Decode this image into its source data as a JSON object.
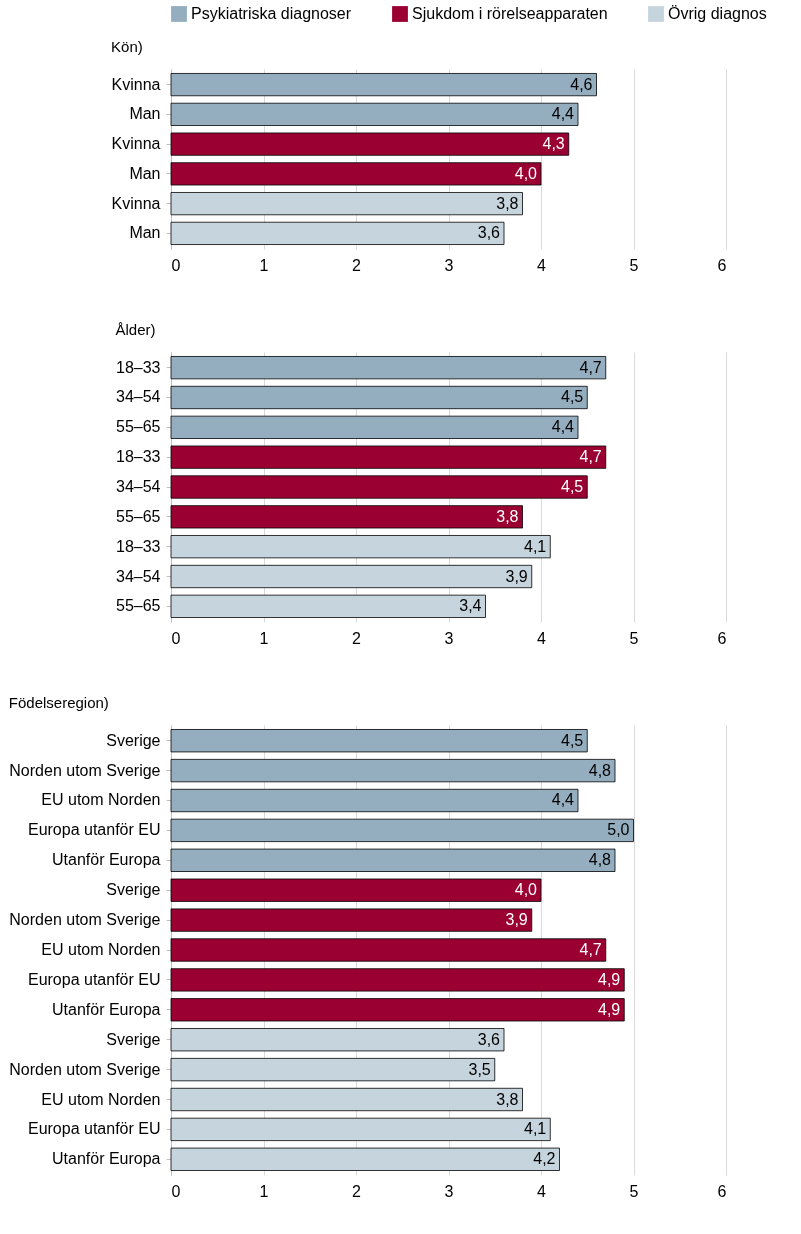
{
  "chart_data": [
    {
      "type": "bar",
      "orientation": "horizontal",
      "title": "Kön)",
      "categories": [
        "Kvinna",
        "Man",
        "Kvinna",
        "Man",
        "Kvinna",
        "Man"
      ],
      "series": [
        {
          "name": "Psykiatriska diagnoser",
          "color": "#94aebf",
          "values": [
            4.6,
            4.4,
            null,
            null,
            null,
            null
          ],
          "value_labels": [
            "4,6",
            "4,4",
            null,
            null,
            null,
            null
          ]
        },
        {
          "name": "Sjukdom i rörelseapparaten",
          "color": "#9b0032",
          "values": [
            null,
            null,
            4.3,
            4.0,
            null,
            null
          ],
          "value_labels": [
            null,
            null,
            "4,3",
            "4,0",
            null,
            null
          ]
        },
        {
          "name": "Övrig diagnos",
          "color": "#c6d4de",
          "values": [
            null,
            null,
            null,
            null,
            3.8,
            3.6
          ],
          "value_labels": [
            null,
            null,
            null,
            null,
            "3,8",
            "3,6"
          ]
        }
      ],
      "xlim": [
        0,
        6
      ],
      "xticks": [
        0,
        1,
        2,
        3,
        4,
        5,
        6
      ],
      "grid": "x",
      "legend": "top"
    },
    {
      "type": "bar",
      "orientation": "horizontal",
      "title": "Ålder)",
      "categories": [
        "18–33",
        "34–54",
        "55–65",
        "18–33",
        "34–54",
        "55–65",
        "18–33",
        "34–54",
        "55–65"
      ],
      "series": [
        {
          "name": "Psykiatriska diagnoser",
          "color": "#94aebf",
          "values": [
            4.7,
            4.5,
            4.4,
            null,
            null,
            null,
            null,
            null,
            null
          ],
          "value_labels": [
            "4,7",
            "4,5",
            "4,4",
            null,
            null,
            null,
            null,
            null,
            null
          ]
        },
        {
          "name": "Sjukdom i rörelseapparaten",
          "color": "#9b0032",
          "values": [
            null,
            null,
            null,
            4.7,
            4.5,
            3.8,
            null,
            null,
            null
          ],
          "value_labels": [
            null,
            null,
            null,
            "4,7",
            "4,5",
            "3,8",
            null,
            null,
            null
          ]
        },
        {
          "name": "Övrig diagnos",
          "color": "#c6d4de",
          "values": [
            null,
            null,
            null,
            null,
            null,
            null,
            4.1,
            3.9,
            3.4
          ],
          "value_labels": [
            null,
            null,
            null,
            null,
            null,
            null,
            "4,1",
            "3,9",
            "3,4"
          ]
        }
      ],
      "xlim": [
        0,
        6
      ],
      "xticks": [
        0,
        1,
        2,
        3,
        4,
        5,
        6
      ],
      "grid": "x"
    },
    {
      "type": "bar",
      "orientation": "horizontal",
      "title": "Födelseregion)",
      "categories": [
        "Sverige",
        "Norden utom Sverige",
        "EU utom Norden",
        "Europa utanför EU",
        "Utanför Europa",
        "Sverige",
        "Norden utom Sverige",
        "EU utom Norden",
        "Europa utanför EU",
        "Utanför Europa",
        "Sverige",
        "Norden utom Sverige",
        "EU utom Norden",
        "Europa utanför EU",
        "Utanför Europa"
      ],
      "series": [
        {
          "name": "Psykiatriska diagnoser",
          "color": "#94aebf",
          "values": [
            4.5,
            4.8,
            4.4,
            5.0,
            4.8,
            null,
            null,
            null,
            null,
            null,
            null,
            null,
            null,
            null,
            null
          ],
          "value_labels": [
            "4,5",
            "4,8",
            "4,4",
            "5,0",
            "4,8",
            null,
            null,
            null,
            null,
            null,
            null,
            null,
            null,
            null,
            null
          ]
        },
        {
          "name": "Sjukdom i rörelseapparaten",
          "color": "#9b0032",
          "values": [
            null,
            null,
            null,
            null,
            null,
            4.0,
            3.9,
            4.7,
            4.9,
            4.9,
            null,
            null,
            null,
            null,
            null
          ],
          "value_labels": [
            null,
            null,
            null,
            null,
            null,
            "4,0",
            "3,9",
            "4,7",
            "4,9",
            "4,9",
            null,
            null,
            null,
            null,
            null
          ]
        },
        {
          "name": "Övrig diagnos",
          "color": "#c6d4de",
          "values": [
            null,
            null,
            null,
            null,
            null,
            null,
            null,
            null,
            null,
            null,
            3.6,
            3.5,
            3.8,
            4.1,
            4.2
          ],
          "value_labels": [
            null,
            null,
            null,
            null,
            null,
            null,
            null,
            null,
            null,
            null,
            "3,6",
            "3,5",
            "3,8",
            "4,1",
            "4,2"
          ]
        }
      ],
      "xlim": [
        0,
        6
      ],
      "xticks": [
        0,
        1,
        2,
        3,
        4,
        5,
        6
      ],
      "grid": "x"
    }
  ]
}
